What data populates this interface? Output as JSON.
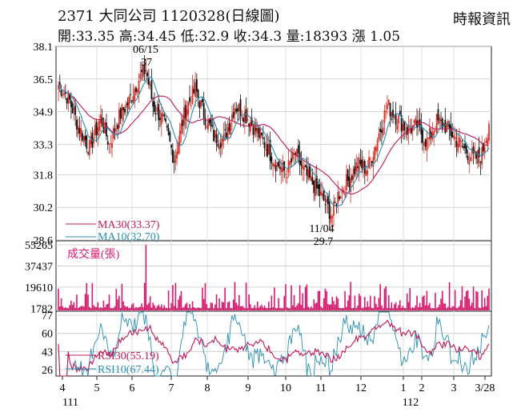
{
  "header": {
    "code": "2371",
    "name": "大同公司",
    "date_label": "1120328(日線圖)",
    "source": "時報資訊",
    "summary": "開:33.35 高:34.45 低:32.9 收:34.3 量:18393 漲 1.05"
  },
  "chart_data": [
    {
      "type": "candlestick",
      "ylim": [
        28.6,
        38.1
      ],
      "y_ticks": [
        "38.1",
        "36.5",
        "34.9",
        "33.3",
        "31.8",
        "30.2",
        "28.6"
      ],
      "up_color": "#d9342b",
      "down_color": "#111111",
      "annotations": [
        {
          "date": "06/15",
          "value": "37"
        },
        {
          "date": "11/04",
          "value": "29.7"
        }
      ],
      "legend": [
        "MA30(33.37)",
        "MA10(32.70)"
      ],
      "series_colors": {
        "ma30": "#c0185a",
        "ma10": "#2a8fb0"
      },
      "last_close": 34.3
    },
    {
      "type": "bar",
      "title": "成交量(張)",
      "y_ticks": [
        "55265",
        "37437",
        "19610",
        "1782"
      ],
      "ylim": [
        0,
        55265
      ],
      "bar_color": "#d61a6e",
      "last_volume": 18393
    },
    {
      "type": "line",
      "y_ticks": [
        "77",
        "60",
        "43",
        "26"
      ],
      "ylim": [
        20,
        80
      ],
      "legend": [
        "RSI30(55.19)",
        "RSI10(67.44)"
      ],
      "series_colors": {
        "rsi30": "#c0185a",
        "rsi10": "#2a8fb0"
      }
    }
  ],
  "x_axis": {
    "month_labels": [
      "4",
      "5",
      "6",
      "7",
      "8",
      "9",
      "10",
      "11",
      "12",
      "1",
      "2",
      "3",
      "3/28"
    ],
    "year_labels": [
      "111",
      "112"
    ]
  }
}
